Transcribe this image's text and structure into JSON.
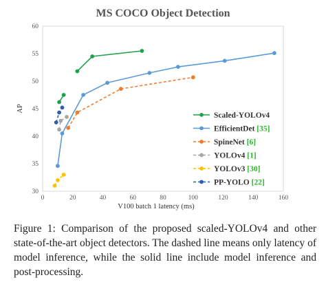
{
  "chart_data": {
    "type": "line",
    "title": "MS COCO Object Detection",
    "xlabel": "V100 batch 1 latency (ms)",
    "ylabel": "AP",
    "xlim": [
      0,
      160
    ],
    "ylim": [
      30,
      60
    ],
    "xticks": [
      "0",
      "20",
      "40",
      "60",
      "80",
      "100",
      "120",
      "140",
      "160"
    ],
    "yticks": [
      "30",
      "35",
      "40",
      "45",
      "50",
      "55",
      "60"
    ],
    "grid": false,
    "legend_position": "right",
    "series": [
      {
        "name": "Scaled-YOLOv4",
        "ref": "",
        "color": "#1fa04a",
        "dashed": false,
        "x": [
          23,
          33,
          66
        ],
        "y": [
          51.8,
          54.5,
          55.5
        ]
      },
      {
        "name": "Scaled-YOLOv4",
        "ref": "",
        "color": "#1fa04a",
        "dashed": false,
        "x": [
          11,
          14
        ],
        "y": [
          46.2,
          47.5
        ]
      },
      {
        "name": "EfficientDet",
        "ref": "[35]",
        "color": "#5b9bd5",
        "dashed": false,
        "x": [
          10,
          13,
          27,
          43,
          71,
          90,
          121,
          154
        ],
        "y": [
          34.6,
          40.5,
          47.5,
          49.7,
          51.5,
          52.6,
          53.7,
          55.1
        ]
      },
      {
        "name": "SpineNet",
        "ref": "[6]",
        "color": "#ed7d31",
        "dashed": true,
        "x": [
          17,
          23,
          52,
          100
        ],
        "y": [
          41.5,
          44.3,
          48.6,
          50.7
        ]
      },
      {
        "name": "YOLOv4",
        "ref": "[1]",
        "color": "#a5a5a5",
        "dashed": true,
        "x": [
          11,
          12,
          16
        ],
        "y": [
          41.2,
          42.8,
          43.5
        ]
      },
      {
        "name": "YOLOv3",
        "ref": "[30]",
        "color": "#ffc000",
        "dashed": true,
        "x": [
          8,
          10,
          14
        ],
        "y": [
          31.0,
          32.0,
          33.0
        ]
      },
      {
        "name": "PP-YOLO",
        "ref": "[22]",
        "color": "#2e5ea8",
        "dashed": true,
        "x": [
          9,
          11,
          13
        ],
        "y": [
          42.5,
          44.3,
          45.2
        ]
      }
    ],
    "legend_order": [
      0,
      2,
      3,
      4,
      5,
      6
    ]
  },
  "caption": "Figure 1: Comparison of the proposed scaled-YOLOv4 and other state-of-the-art object detectors. The dashed line means only latency of model inference, while the solid line include model inference and post-processing."
}
